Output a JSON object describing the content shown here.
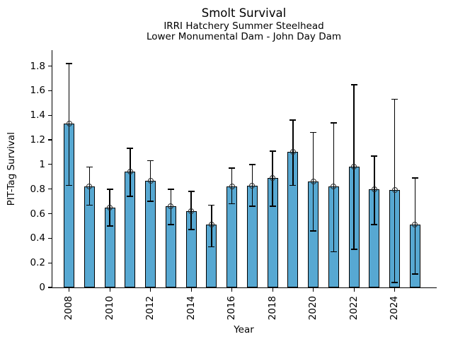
{
  "chart_data": {
    "type": "bar",
    "title": "Smolt Survival",
    "subtitle": [
      "IRRI Hatchery Summer Steelhead",
      "Lower Monumental Dam - John Day Dam"
    ],
    "xlabel": "Year",
    "ylabel": "PIT-Tag Survival",
    "categories": [
      "2008",
      "2009",
      "2010",
      "2011",
      "2012",
      "2013",
      "2014",
      "2015",
      "2016",
      "2017",
      "2018",
      "2019",
      "2020",
      "2021",
      "2022",
      "2023",
      "2024",
      "2025"
    ],
    "series": [
      {
        "name": "PIT-Tag Survival",
        "values": [
          1.33,
          0.82,
          0.65,
          0.94,
          0.87,
          0.66,
          0.62,
          0.51,
          0.82,
          0.83,
          0.89,
          1.1,
          0.86,
          0.82,
          0.98,
          0.8,
          0.79,
          0.51
        ],
        "error_low": [
          0.83,
          0.67,
          0.5,
          0.74,
          0.7,
          0.51,
          0.47,
          0.33,
          0.68,
          0.66,
          0.66,
          0.83,
          0.46,
          0.29,
          0.31,
          0.51,
          0.04,
          0.11
        ],
        "error_high": [
          1.82,
          0.98,
          0.8,
          1.13,
          1.03,
          0.8,
          0.78,
          0.67,
          0.97,
          1.0,
          1.11,
          1.36,
          1.26,
          1.34,
          1.65,
          1.07,
          1.53,
          0.89
        ]
      }
    ],
    "ylim": [
      0,
      1.93
    ],
    "yticks": [
      0,
      0.2,
      0.4,
      0.6,
      0.8,
      1,
      1.2,
      1.4,
      1.6,
      1.8
    ],
    "ytick_labels": [
      "0",
      "0.2",
      "0.4",
      "0.6",
      "0.8",
      "1",
      "1.2",
      "1.4",
      "1.6",
      "1.8"
    ],
    "xtick_labels": [
      "2008",
      "2010",
      "2012",
      "2014",
      "2016",
      "2018",
      "2020",
      "2022",
      "2024"
    ],
    "grid": false,
    "legend": "none",
    "marker": "open-circle",
    "colors": {
      "bar_fill": "#57a8d2",
      "bar_edge": "#000000",
      "error": "#000000",
      "marker_edge": "#2b2b2b",
      "background": "#ffffff",
      "text": "#000000"
    }
  }
}
